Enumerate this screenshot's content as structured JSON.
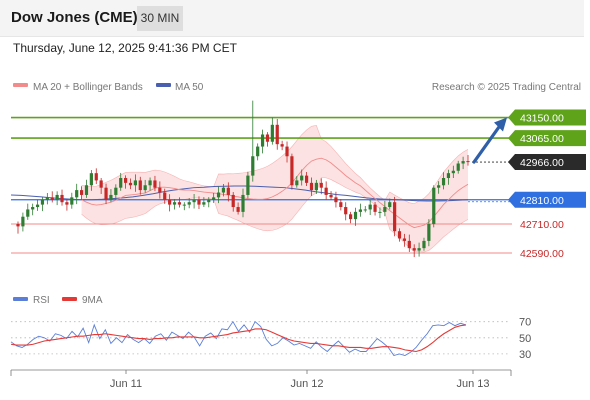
{
  "header": {
    "title": "Dow Jones (CME)",
    "timeframe": "30 MIN"
  },
  "timestamp": "Thursday, June 12, 2025 9:41:36 PM CET",
  "legend": {
    "ma20": "MA 20 + Bollinger Bands",
    "ma50": "MA 50",
    "credit": "Research © 2025 Trading Central",
    "rsi": "RSI",
    "rsi_ma": "9MA"
  },
  "colors": {
    "bull": "#2e7d32",
    "bear": "#c62828",
    "ma20": "#f28b8b",
    "ma50": "#4a5fb0",
    "band_fill": "#fbd6d6",
    "green_level": "#5fa31a",
    "blue_level": "#2f6fe0",
    "red_level": "#f08a8a",
    "current": "#2a2a2a",
    "rsi": "#5b7fd8",
    "rsi_ma": "#e53935",
    "arrow": "#2f5fa8"
  },
  "chart_data": [
    {
      "type": "candlestick",
      "title": "Dow Jones (CME)",
      "interval": "30 MIN",
      "x_ticks": [
        "Jun 11",
        "Jun 12",
        "Jun 13"
      ],
      "ylim": [
        42470,
        43235
      ],
      "levels": [
        {
          "value": 43150.0,
          "label": "43150.00",
          "kind": "resistance"
        },
        {
          "value": 43065.0,
          "label": "43065.00",
          "kind": "resistance"
        },
        {
          "value": 42966.0,
          "label": "42966.00",
          "kind": "last"
        },
        {
          "value": 42810.0,
          "label": "42810.00",
          "kind": "pivot"
        },
        {
          "value": 42710.0,
          "label": "42710.00",
          "kind": "support"
        },
        {
          "value": 42590.0,
          "label": "42590.00",
          "kind": "support"
        }
      ],
      "close": [
        42700,
        42740,
        42770,
        42780,
        42790,
        42810,
        42820,
        42810,
        42830,
        42800,
        42790,
        42820,
        42850,
        42830,
        42870,
        42920,
        42890,
        42860,
        42810,
        42830,
        42860,
        42900,
        42880,
        42870,
        42890,
        42850,
        42870,
        42890,
        42860,
        42840,
        42810,
        42790,
        42800,
        42790,
        42790,
        42800,
        42810,
        42790,
        42800,
        42810,
        42820,
        42840,
        42860,
        42830,
        42780,
        42760,
        42830,
        42910,
        42990,
        43030,
        43080,
        43050,
        43120,
        43040,
        43030,
        42990,
        42870,
        42890,
        42910,
        42880,
        42850,
        42880,
        42860,
        42830,
        42820,
        42800,
        42780,
        42750,
        42730,
        42760,
        42770,
        42770,
        42790,
        42760,
        42760,
        42780,
        42800,
        42680,
        42650,
        42640,
        42610,
        42600,
        42610,
        42640,
        42710,
        42860,
        42870,
        42900,
        42920,
        42930,
        42960,
        42970,
        42966
      ],
      "ma20": [
        42810,
        42800,
        42792,
        42788,
        42790,
        42795,
        42800,
        42808,
        42818,
        42828,
        42830,
        42832,
        42835,
        42838,
        42848,
        42858,
        42862,
        42862,
        42860,
        42857,
        42852,
        42850,
        42850,
        42848,
        42845,
        42842,
        42840,
        42838,
        42835,
        42832,
        42830,
        42825,
        42822,
        42818,
        42815,
        42813,
        42812,
        42812,
        42815,
        42822,
        42832,
        42845,
        42860,
        42880,
        42905,
        42930,
        42952,
        42970,
        42978,
        42982,
        42975,
        42962,
        42945,
        42928,
        42910,
        42895,
        42880,
        42868,
        42850,
        42832,
        42815,
        42798,
        42782,
        42765,
        42750,
        42735,
        42720,
        42705,
        42695,
        42700,
        42705,
        42718,
        42740,
        42765,
        42790,
        42810,
        42830,
        42848,
        42862,
        42874
      ],
      "ma50": [
        42830,
        42828,
        42825,
        42822,
        42818,
        42815,
        42812,
        42810,
        42810,
        42812,
        42815,
        42818,
        42822,
        42828,
        42835,
        42843,
        42850,
        42855,
        42860,
        42862,
        42865,
        42866,
        42867,
        42867,
        42866,
        42864,
        42862,
        42860,
        42855,
        42850,
        42843,
        42838,
        42832,
        42828,
        42823,
        42818,
        42814,
        42812,
        42810,
        42808,
        42806,
        42805,
        42805,
        42806,
        42808,
        42810
      ],
      "ma_band_start_index": 11
    },
    {
      "type": "line",
      "title": "RSI",
      "ylim": [
        15,
        82
      ],
      "yticks": [
        70,
        50,
        30
      ],
      "series": [
        {
          "name": "RSI",
          "values": [
            45,
            40,
            38,
            42,
            48,
            52,
            50,
            46,
            55,
            53,
            49,
            58,
            51,
            62,
            44,
            66,
            49,
            60,
            43,
            50,
            44,
            54,
            48,
            44,
            49,
            43,
            52,
            55,
            47,
            57,
            53,
            49,
            57,
            51,
            40,
            52,
            56,
            49,
            61,
            60,
            70,
            58,
            66,
            57,
            70,
            64,
            48,
            40,
            43,
            50,
            46,
            41,
            43,
            40,
            37,
            45,
            38,
            33,
            40,
            46,
            39,
            32,
            36,
            33,
            33,
            41,
            49,
            44,
            38,
            28,
            30,
            28,
            32,
            38,
            47,
            55,
            65,
            66,
            65,
            69,
            65,
            68,
            66
          ]
        },
        {
          "name": "9MA",
          "values": [
            42,
            41,
            41,
            41,
            42,
            44,
            46,
            47,
            48,
            49,
            50,
            51,
            52,
            52,
            53,
            54,
            54,
            55,
            54,
            53,
            52,
            51,
            50,
            49,
            49,
            48,
            49,
            49,
            50,
            50,
            51,
            51,
            51,
            51,
            50,
            50,
            51,
            52,
            53,
            54,
            56,
            57,
            58,
            59,
            61,
            61,
            60,
            57,
            54,
            51,
            48,
            46,
            45,
            44,
            43,
            43,
            42,
            41,
            40,
            40,
            39,
            38,
            38,
            38,
            37,
            37,
            38,
            39,
            39,
            38,
            37,
            35,
            34,
            33,
            35,
            39,
            44,
            50,
            55,
            59,
            63,
            65,
            66
          ]
        }
      ]
    }
  ]
}
